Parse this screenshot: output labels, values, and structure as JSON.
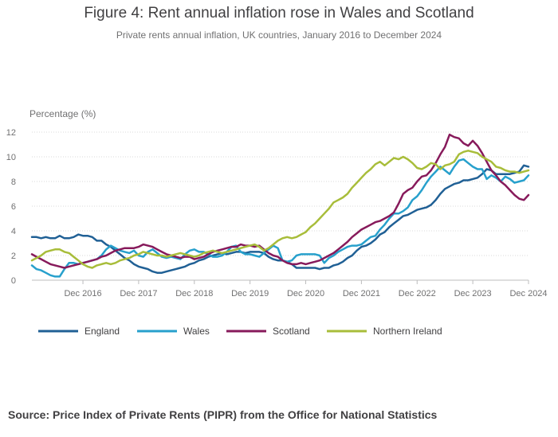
{
  "title": "Figure 4: Rent annual inflation rose in Wales and Scotland",
  "subtitle": "Private rents annual inflation, UK countries, January 2016 to December 2024",
  "source": "Source: Price Index of Private Rents (PIPR) from the Office for National Statistics",
  "chart_data": {
    "type": "line",
    "ylabel": "Percentage (%)",
    "xlabel": "",
    "ylim": [
      0,
      12
    ],
    "yticks": [
      0,
      2,
      4,
      6,
      8,
      10,
      12
    ],
    "x_start": "Jan 2016",
    "x_end": "Dec 2024",
    "months": 108,
    "xticks": [
      {
        "label": "Dec 2016",
        "month_index": 11
      },
      {
        "label": "Dec 2017",
        "month_index": 23
      },
      {
        "label": "Dec 2018",
        "month_index": 35
      },
      {
        "label": "Dec 2019",
        "month_index": 47
      },
      {
        "label": "Dec 2020",
        "month_index": 59
      },
      {
        "label": "Dec 2021",
        "month_index": 71
      },
      {
        "label": "Dec 2022",
        "month_index": 83
      },
      {
        "label": "Dec 2023",
        "month_index": 95
      },
      {
        "label": "Dec 2024",
        "month_index": 107
      }
    ],
    "series": [
      {
        "name": "England",
        "color": "#206095",
        "values": [
          3.5,
          3.5,
          3.4,
          3.5,
          3.4,
          3.4,
          3.6,
          3.4,
          3.4,
          3.5,
          3.7,
          3.6,
          3.6,
          3.5,
          3.2,
          3.2,
          2.9,
          2.7,
          2.4,
          2.1,
          1.8,
          1.6,
          1.3,
          1.1,
          1.0,
          0.9,
          0.7,
          0.6,
          0.6,
          0.7,
          0.8,
          0.9,
          1.0,
          1.1,
          1.3,
          1.4,
          1.6,
          1.7,
          1.9,
          2.0,
          2.1,
          2.2,
          2.1,
          2.2,
          2.3,
          2.3,
          2.2,
          2.3,
          2.3,
          2.3,
          2.2,
          1.9,
          1.7,
          1.6,
          1.6,
          1.5,
          1.3,
          1.0,
          1.0,
          1.0,
          1.0,
          1.0,
          0.9,
          1.0,
          1.0,
          1.2,
          1.3,
          1.5,
          1.8,
          2.0,
          2.4,
          2.7,
          2.8,
          3.0,
          3.3,
          3.7,
          3.9,
          4.3,
          4.6,
          4.9,
          5.2,
          5.3,
          5.5,
          5.7,
          5.8,
          5.9,
          6.1,
          6.5,
          7.0,
          7.4,
          7.6,
          7.8,
          7.9,
          8.1,
          8.1,
          8.2,
          8.3,
          8.6,
          9.0,
          8.9,
          8.6,
          8.6,
          8.6,
          8.6,
          8.7,
          8.8,
          9.3,
          9.2
        ]
      },
      {
        "name": "Wales",
        "color": "#27a0cc",
        "values": [
          1.2,
          0.9,
          0.8,
          0.6,
          0.4,
          0.3,
          0.3,
          0.9,
          1.4,
          1.4,
          1.3,
          1.4,
          1.5,
          1.6,
          1.7,
          2.0,
          2.5,
          2.8,
          2.6,
          2.4,
          2.3,
          2.2,
          2.4,
          2.0,
          1.9,
          2.3,
          2.5,
          2.2,
          1.9,
          1.8,
          1.9,
          1.8,
          1.7,
          2.1,
          2.4,
          2.5,
          2.3,
          2.3,
          2.1,
          1.9,
          1.9,
          2.0,
          2.3,
          2.7,
          2.8,
          2.3,
          2.1,
          2.1,
          2.0,
          1.9,
          2.2,
          2.5,
          2.8,
          2.6,
          1.6,
          1.5,
          1.6,
          2.0,
          2.1,
          2.1,
          2.1,
          2.1,
          2.0,
          1.4,
          1.8,
          2.0,
          2.3,
          2.5,
          2.7,
          2.8,
          2.8,
          2.9,
          3.2,
          3.5,
          3.6,
          4.1,
          4.5,
          5.0,
          5.4,
          5.4,
          5.6,
          5.9,
          6.5,
          6.8,
          7.3,
          7.9,
          8.4,
          8.8,
          9.2,
          8.9,
          8.6,
          9.2,
          9.7,
          9.8,
          9.5,
          9.2,
          9.0,
          9.0,
          8.2,
          8.5,
          8.3,
          8.0,
          8.4,
          8.2,
          7.9,
          8.0,
          8.1,
          8.5
        ]
      },
      {
        "name": "Scotland",
        "color": "#871a5b",
        "values": [
          2.1,
          1.9,
          1.7,
          1.5,
          1.3,
          1.2,
          1.1,
          1.0,
          1.1,
          1.2,
          1.3,
          1.4,
          1.5,
          1.6,
          1.7,
          1.9,
          2.0,
          2.2,
          2.4,
          2.5,
          2.6,
          2.6,
          2.6,
          2.7,
          2.9,
          2.8,
          2.7,
          2.5,
          2.3,
          2.1,
          2.0,
          1.9,
          1.8,
          1.9,
          1.9,
          1.7,
          1.8,
          1.9,
          2.1,
          2.3,
          2.4,
          2.5,
          2.6,
          2.7,
          2.7,
          2.9,
          2.8,
          2.8,
          2.7,
          2.8,
          2.5,
          2.2,
          2.0,
          1.9,
          1.6,
          1.4,
          1.3,
          1.3,
          1.4,
          1.3,
          1.4,
          1.5,
          1.6,
          1.8,
          2.0,
          2.2,
          2.5,
          2.8,
          3.1,
          3.5,
          3.8,
          4.1,
          4.3,
          4.5,
          4.7,
          4.8,
          5.0,
          5.2,
          5.5,
          6.2,
          7.0,
          7.3,
          7.5,
          8.0,
          8.4,
          8.5,
          8.9,
          9.5,
          10.2,
          10.8,
          11.8,
          11.6,
          11.5,
          11.1,
          10.9,
          11.3,
          10.9,
          10.3,
          9.6,
          8.9,
          8.5,
          8.0,
          7.7,
          7.3,
          6.9,
          6.6,
          6.5,
          6.9
        ]
      },
      {
        "name": "Northern Ireland",
        "color": "#a8bd3a",
        "values": [
          1.6,
          1.8,
          2.0,
          2.3,
          2.4,
          2.5,
          2.5,
          2.3,
          2.2,
          1.9,
          1.6,
          1.3,
          1.1,
          1.0,
          1.2,
          1.3,
          1.4,
          1.3,
          1.4,
          1.6,
          1.7,
          1.8,
          2.0,
          2.1,
          2.3,
          2.2,
          2.1,
          2.0,
          2.0,
          1.9,
          2.0,
          2.1,
          2.2,
          2.1,
          2.0,
          1.9,
          2.0,
          2.2,
          2.3,
          2.4,
          2.3,
          2.2,
          2.3,
          2.4,
          2.5,
          2.6,
          2.7,
          2.8,
          2.9,
          2.7,
          2.4,
          2.6,
          2.9,
          3.2,
          3.4,
          3.5,
          3.4,
          3.5,
          3.7,
          3.9,
          4.3,
          4.6,
          5.0,
          5.4,
          5.8,
          6.3,
          6.5,
          6.7,
          7.0,
          7.5,
          7.9,
          8.3,
          8.7,
          9.0,
          9.4,
          9.6,
          9.3,
          9.6,
          9.9,
          9.8,
          10.0,
          9.8,
          9.5,
          9.1,
          9.0,
          9.2,
          9.5,
          9.4,
          9.0,
          9.3,
          9.4,
          9.6,
          10.2,
          10.4,
          10.5,
          10.4,
          10.3,
          10.0,
          9.8,
          9.6,
          9.2,
          9.1,
          8.9,
          8.8,
          8.8,
          8.7,
          8.8,
          8.9
        ]
      }
    ]
  }
}
